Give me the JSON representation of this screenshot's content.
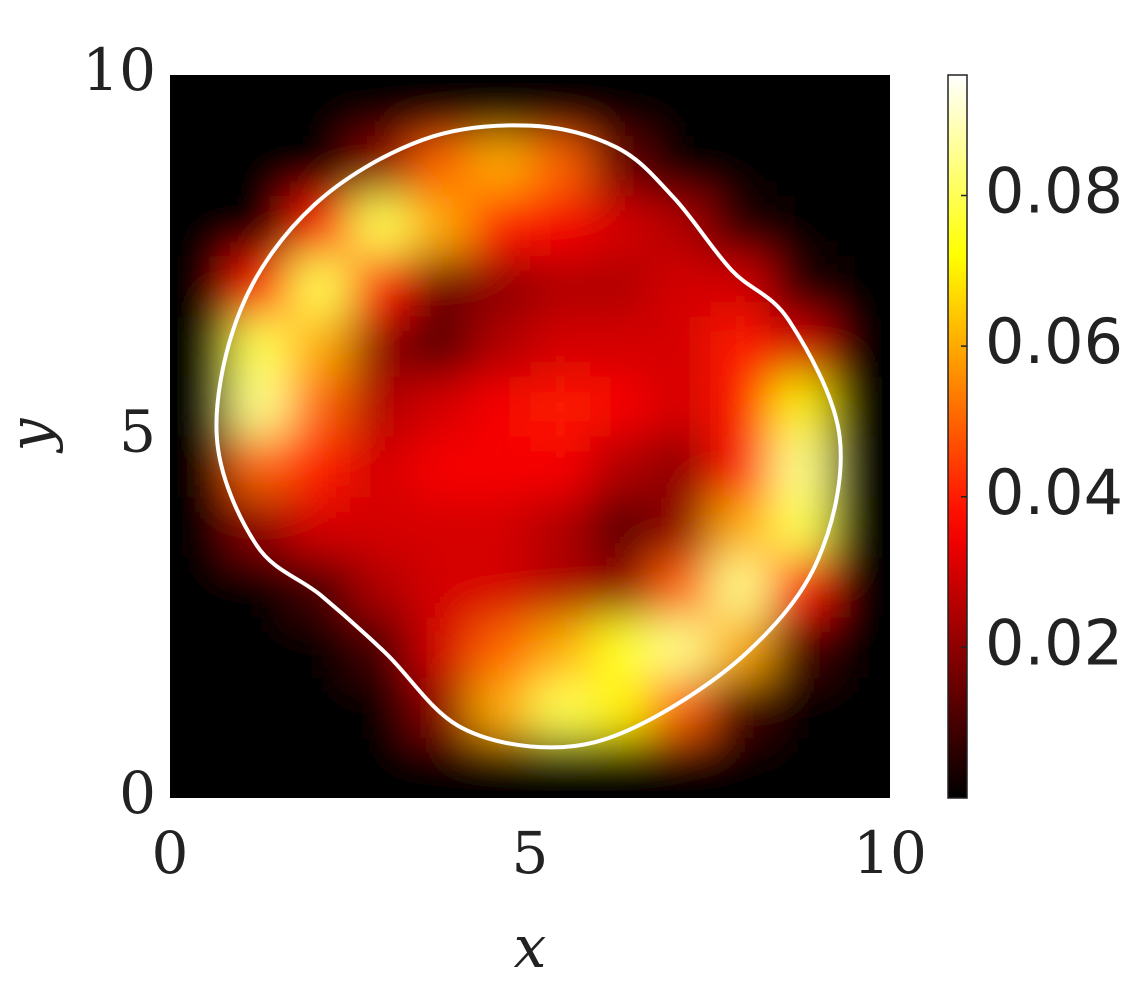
{
  "chart_data": {
    "type": "heatmap",
    "xlabel": "x",
    "ylabel": "y",
    "xlim": [
      0,
      10
    ],
    "ylim": [
      0,
      10
    ],
    "xticks": [
      0,
      5,
      10
    ],
    "yticks": [
      0,
      5,
      10
    ],
    "colormap": "hot",
    "clim": [
      0,
      0.096
    ],
    "cticks": [
      0.02,
      0.04,
      0.06,
      0.08
    ],
    "x": [
      0.42,
      1.25,
      2.08,
      2.92,
      3.75,
      4.58,
      5.42,
      6.25,
      7.08,
      7.92,
      8.75,
      9.58
    ],
    "y": [
      0.42,
      1.25,
      2.08,
      2.92,
      3.75,
      4.58,
      5.42,
      6.25,
      7.08,
      7.92,
      8.75,
      9.58
    ],
    "z": [
      [
        0,
        0,
        0,
        0,
        0,
        0,
        0,
        0,
        0,
        0,
        0,
        0
      ],
      [
        0,
        0,
        0,
        0,
        0.02,
        0.06,
        0.08,
        0.07,
        0.05,
        0.01,
        0,
        0
      ],
      [
        0,
        0,
        0,
        0.01,
        0.03,
        0.05,
        0.06,
        0.075,
        0.085,
        0.06,
        0.01,
        0
      ],
      [
        0,
        0,
        0.01,
        0.025,
        0.03,
        0.03,
        0.025,
        0.02,
        0.05,
        0.085,
        0.04,
        0
      ],
      [
        0,
        0.02,
        0.03,
        0.03,
        0.03,
        0.03,
        0.025,
        0.012,
        0.02,
        0.06,
        0.08,
        0
      ],
      [
        0,
        0.05,
        0.04,
        0.03,
        0.035,
        0.035,
        0.035,
        0.025,
        0.02,
        0.04,
        0.085,
        0
      ],
      [
        0,
        0.085,
        0.05,
        0.025,
        0.03,
        0.035,
        0.04,
        0.035,
        0.03,
        0.04,
        0.07,
        0
      ],
      [
        0,
        0.08,
        0.06,
        0.02,
        0.012,
        0.025,
        0.03,
        0.03,
        0.03,
        0.04,
        0.03,
        0
      ],
      [
        0,
        0.04,
        0.08,
        0.04,
        0.015,
        0.02,
        0.025,
        0.025,
        0.03,
        0.03,
        0.005,
        0
      ],
      [
        0,
        0,
        0.04,
        0.08,
        0.06,
        0.04,
        0.035,
        0.03,
        0.025,
        0.005,
        0,
        0
      ],
      [
        0,
        0,
        0,
        0.02,
        0.05,
        0.06,
        0.05,
        0.015,
        0,
        0,
        0,
        0
      ],
      [
        0,
        0,
        0,
        0,
        0,
        0,
        0,
        0,
        0,
        0,
        0,
        0
      ]
    ],
    "boundary": {
      "color": "#ffffff",
      "x": [
        5.0,
        6.2,
        7.0,
        7.8,
        8.6,
        9.3,
        9.0,
        8.0,
        6.5,
        5.3,
        4.0,
        3.0,
        2.1,
        1.2,
        0.65,
        1.0,
        2.0,
        3.5
      ],
      "y": [
        9.3,
        9.0,
        8.3,
        7.3,
        6.6,
        5.0,
        3.3,
        2.0,
        1.0,
        0.7,
        1.0,
        2.0,
        2.8,
        3.5,
        5.0,
        6.8,
        8.2,
        9.1
      ]
    }
  }
}
